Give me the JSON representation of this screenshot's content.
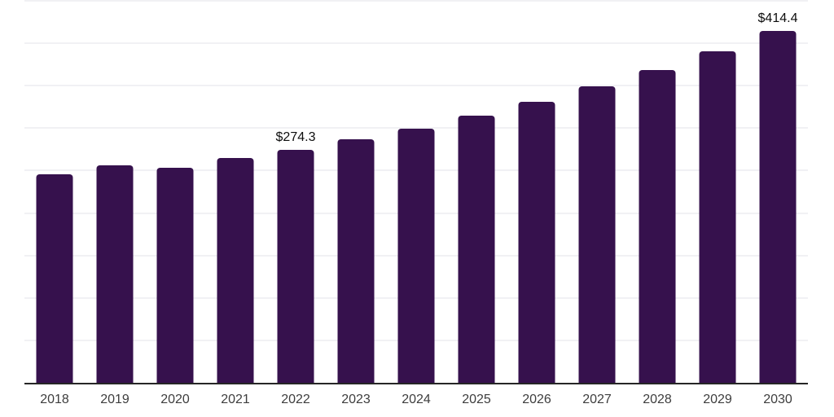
{
  "chart_data": {
    "type": "bar",
    "title": "",
    "xlabel": "",
    "ylabel": "",
    "categories": [
      "2018",
      "2019",
      "2020",
      "2021",
      "2022",
      "2023",
      "2024",
      "2025",
      "2026",
      "2027",
      "2028",
      "2029",
      "2030"
    ],
    "values": [
      246.0,
      256.5,
      253.0,
      264.8,
      274.3,
      287.0,
      299.5,
      315.1,
      331.4,
      348.9,
      368.5,
      390.4,
      414.4
    ],
    "point_labels": [
      "",
      "",
      "",
      "",
      "$274.3",
      "",
      "",
      "",
      "",
      "",
      "",
      "",
      "$414.4"
    ],
    "ylim": [
      0,
      450
    ],
    "gridline_step": 50,
    "grid": "horizontal",
    "legend": "none",
    "y_axis_labels_visible": false,
    "colors": {
      "bar": "#36114D",
      "axis_line": "#262626",
      "gridline": "#f1f1f4",
      "value_label": "#0d0d0d",
      "tick_label": "#3d3d3d",
      "background": "#ffffff"
    }
  }
}
